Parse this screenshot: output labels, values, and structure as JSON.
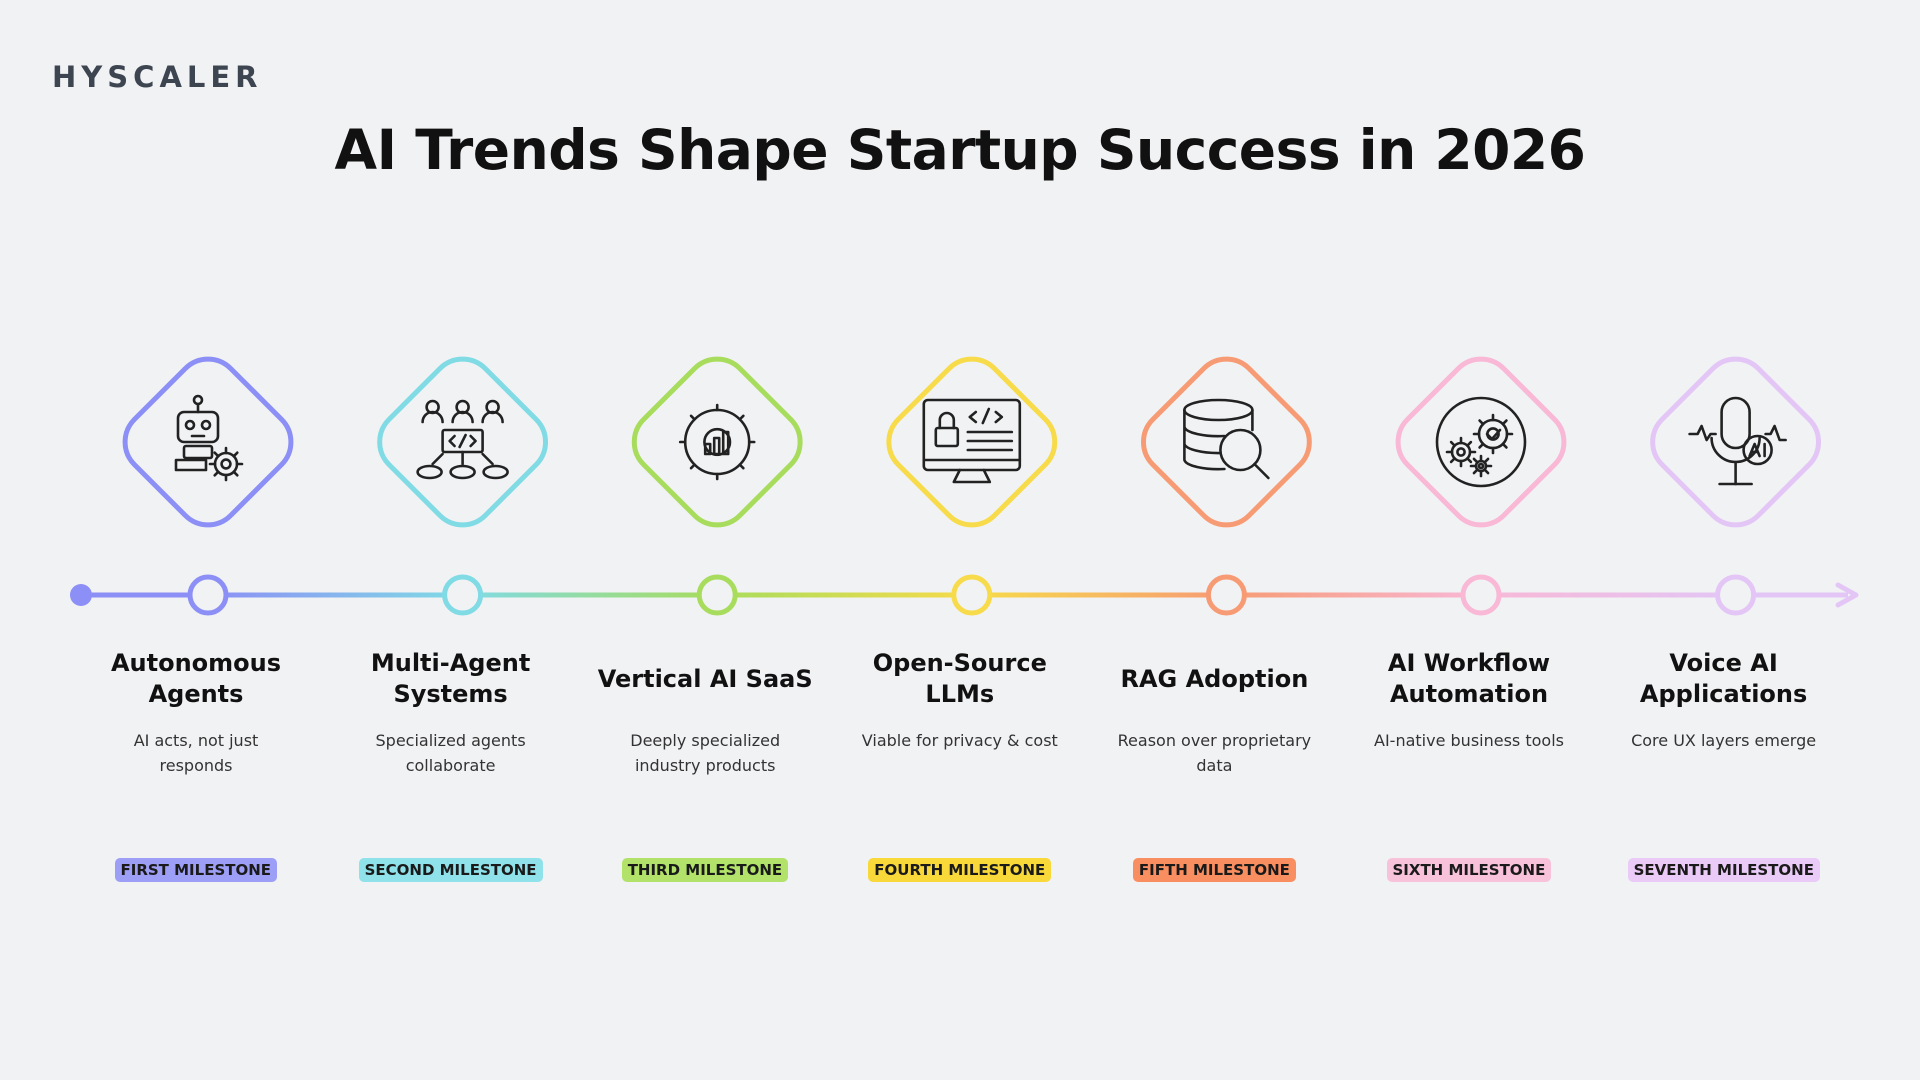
{
  "logo": "HYSCALER",
  "title": "AI Trends Shape Startup Success in 2026",
  "milestones": [
    {
      "title": "Autonomous Agents",
      "description": "AI acts, not just responds",
      "badge": "FIRST MILESTONE",
      "color": "#8c8ff5",
      "badge_color": "#9d9ff7"
    },
    {
      "title": "Multi-Agent Systems",
      "description": "Specialized agents collaborate",
      "badge": "SECOND MILESTONE",
      "color": "#80dbe5",
      "badge_color": "#8fe1ea"
    },
    {
      "title": "Vertical AI SaaS",
      "description": "Deeply specialized industry products",
      "badge": "THIRD MILESTONE",
      "color": "#a8dc5c",
      "badge_color": "#b2e26a"
    },
    {
      "title": "Open-Source LLMs",
      "description": "Viable for privacy & cost",
      "badge": "FOURTH MILESTONE",
      "color": "#f7db4a",
      "badge_color": "#f9d93a"
    },
    {
      "title": "RAG Adoption",
      "description": "Reason over proprietary data",
      "badge": "FIFTH MILESTONE",
      "color": "#f79b74",
      "badge_color": "#f98f60"
    },
    {
      "title": "AI Workflow Automation",
      "description": "AI-native business tools",
      "badge": "SIXTH MILESTONE",
      "color": "#f8b8d6",
      "badge_color": "#f9c2db"
    },
    {
      "title": "Voice AI Applications",
      "description": "Core UX layers emerge",
      "badge": "SEVENTH MILESTONE",
      "color": "#e3c6f6",
      "badge_color": "#eacbf8"
    }
  ]
}
